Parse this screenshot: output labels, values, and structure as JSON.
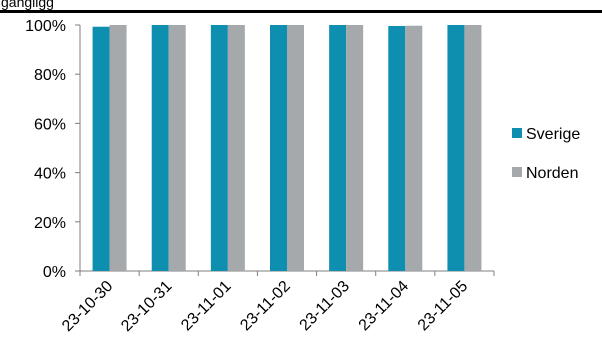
{
  "header": {
    "title_fragment": "gängligg"
  },
  "chart_data": {
    "type": "bar",
    "categories": [
      "23-10-30",
      "23-10-31",
      "23-11-01",
      "23-11-02",
      "23-11-03",
      "23-11-04",
      "23-11-05"
    ],
    "series": [
      {
        "name": "Sverige",
        "values": [
          99.3,
          100,
          100,
          100,
          100,
          99.6,
          100
        ]
      },
      {
        "name": "Norden",
        "values": [
          100,
          100,
          100,
          100,
          100,
          99.7,
          100
        ]
      }
    ],
    "ylim": [
      0,
      100
    ],
    "ytick_labels": [
      "0%",
      "20%",
      "40%",
      "60%",
      "80%",
      "100%"
    ],
    "grid": false,
    "legend_position": "right",
    "colors": {
      "Sverige": "#0e8fb0",
      "Norden": "#a6a9ab",
      "axis": "#7f7f7f"
    }
  }
}
